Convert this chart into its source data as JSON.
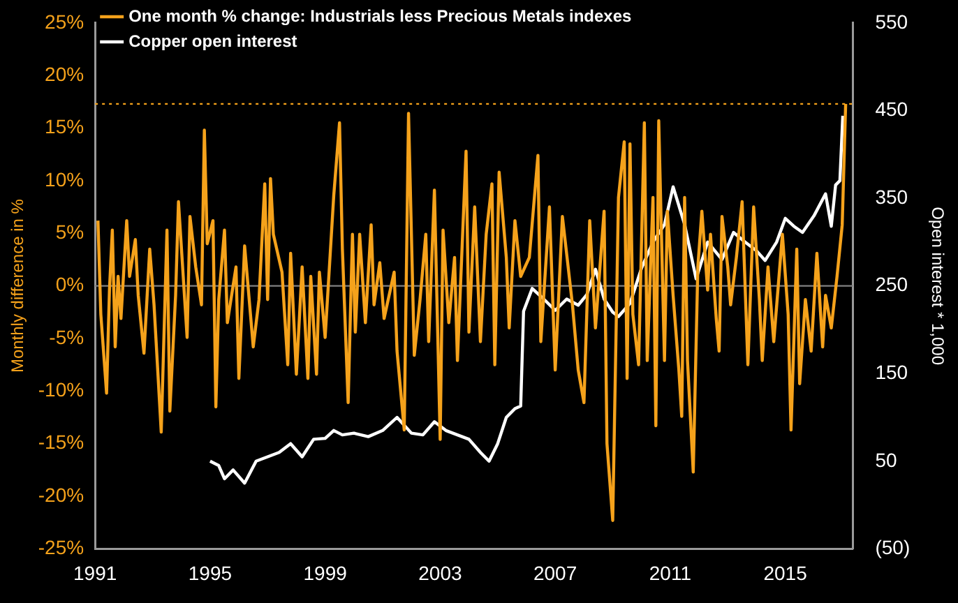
{
  "chart_data": {
    "type": "line",
    "ylabel": "Monthly difference in %",
    "y2label": "Open interest * 1,000",
    "legend": "top left",
    "marker": "none",
    "line_style": "solid",
    "xlim": [
      1991,
      2017.35
    ],
    "xticks": [
      1991,
      1995,
      1999,
      2003,
      2007,
      2011,
      2015
    ],
    "ylim": [
      -25,
      25
    ],
    "yticks": [
      {
        "value": -25,
        "label": "-25%"
      },
      {
        "value": -20,
        "label": "-20%"
      },
      {
        "value": -15,
        "label": "-15%"
      },
      {
        "value": -10,
        "label": "-10%"
      },
      {
        "value": -5,
        "label": "-5%"
      },
      {
        "value": 0,
        "label": "0%"
      },
      {
        "value": 5,
        "label": "5%"
      },
      {
        "value": 10,
        "label": "10%"
      },
      {
        "value": 15,
        "label": "15%"
      },
      {
        "value": 20,
        "label": "20%"
      },
      {
        "value": 25,
        "label": "25%"
      }
    ],
    "y2lim": [
      -50,
      550
    ],
    "y2ticks": [
      {
        "value": -50,
        "label": "(50)"
      },
      50,
      150,
      250,
      350,
      450,
      550
    ],
    "ref_lines": [
      {
        "axis": "y",
        "value": 0,
        "color": "#808080",
        "line_style": "solid"
      },
      {
        "axis": "y",
        "value": 17.3,
        "color": "#f5a21b",
        "line_style": "dotted"
      }
    ],
    "series": [
      {
        "name": "One month % change: Industrials less Precious Metals indexes",
        "color": "#f5a21b",
        "x": [
          1991.1,
          1991.2,
          1991.4,
          1991.5,
          1991.6,
          1991.7,
          1991.8,
          1991.9,
          1992.1,
          1992.2,
          1992.4,
          1992.5,
          1992.7,
          1992.9,
          1993.05,
          1993.3,
          1993.5,
          1993.6,
          1993.8,
          1993.9,
          1994.2,
          1994.3,
          1994.5,
          1994.7,
          1994.8,
          1994.9,
          1995.1,
          1995.2,
          1995.3,
          1995.5,
          1995.6,
          1995.9,
          1996.0,
          1996.2,
          1996.5,
          1996.7,
          1996.9,
          1997.0,
          1997.1,
          1997.2,
          1997.5,
          1997.7,
          1997.8,
          1998.0,
          1998.2,
          1998.4,
          1998.5,
          1998.7,
          1998.8,
          1999.0,
          1999.3,
          1999.5,
          1999.6,
          1999.8,
          1999.95,
          2000.05,
          2000.2,
          2000.4,
          2000.6,
          2000.7,
          2000.9,
          2001.05,
          2001.4,
          2001.5,
          2001.75,
          2001.9,
          2002.1,
          2002.3,
          2002.5,
          2002.6,
          2002.8,
          2003.0,
          2003.1,
          2003.3,
          2003.5,
          2003.6,
          2003.9,
          2004.0,
          2004.2,
          2004.4,
          2004.6,
          2004.8,
          2004.9,
          2005.05,
          2005.3,
          2005.4,
          2005.6,
          2005.8,
          2006.1,
          2006.4,
          2006.5,
          2006.8,
          2007.0,
          2007.25,
          2007.6,
          2007.8,
          2008.0,
          2008.2,
          2008.4,
          2008.7,
          2008.8,
          2009.0,
          2009.2,
          2009.4,
          2009.5,
          2009.6,
          2009.7,
          2009.9,
          2010.1,
          2010.2,
          2010.4,
          2010.5,
          2010.6,
          2010.8,
          2010.9,
          2011.1,
          2011.3,
          2011.4,
          2011.5,
          2011.6,
          2011.8,
          2011.96,
          2012.1,
          2012.3,
          2012.4,
          2012.6,
          2012.7,
          2012.8,
          2013.0,
          2013.1,
          2013.3,
          2013.5,
          2013.7,
          2013.9,
          2014.1,
          2014.2,
          2014.4,
          2014.6,
          2014.9,
          2015.1,
          2015.2,
          2015.4,
          2015.5,
          2015.7,
          2015.9,
          2016.1,
          2016.3,
          2016.4,
          2016.6,
          2016.8,
          2016.98,
          2017.1
        ],
        "values": [
          6.2,
          -2.7,
          -10.2,
          -0.4,
          5.3,
          -5.8,
          0.9,
          -3.1,
          6.2,
          0.9,
          4.4,
          -0.9,
          -6.4,
          3.5,
          -1.8,
          -13.9,
          5.3,
          -11.9,
          -0.9,
          8.0,
          -4.9,
          6.6,
          1.8,
          -1.8,
          14.8,
          4.0,
          6.2,
          -11.5,
          -1.3,
          5.3,
          -3.5,
          1.8,
          -8.8,
          3.8,
          -5.8,
          -1.3,
          9.7,
          -1.3,
          10.2,
          4.9,
          1.3,
          -7.5,
          3.1,
          -8.4,
          1.8,
          -8.8,
          0.9,
          -8.4,
          1.3,
          -4.9,
          8.6,
          15.5,
          3.5,
          -11.1,
          4.9,
          -4.4,
          4.9,
          -3.5,
          5.8,
          -1.8,
          2.2,
          -3.1,
          1.3,
          -6.2,
          -13.7,
          16.4,
          -6.6,
          -1.3,
          4.9,
          -5.3,
          9.1,
          -14.6,
          5.3,
          -3.5,
          2.7,
          -7.1,
          12.8,
          -4.4,
          7.5,
          -5.3,
          4.9,
          9.7,
          -7.5,
          10.8,
          2.7,
          -4.0,
          6.2,
          0.9,
          2.7,
          12.4,
          -5.3,
          7.5,
          -8.0,
          6.6,
          -1.8,
          -8.0,
          -11.1,
          6.2,
          -4.0,
          7.1,
          -15.0,
          -22.3,
          8.4,
          13.7,
          -8.8,
          13.5,
          -2.7,
          -7.5,
          15.5,
          -7.1,
          8.4,
          -13.3,
          15.7,
          -7.1,
          7.1,
          -0.9,
          -8.0,
          -12.4,
          8.4,
          -7.1,
          -17.7,
          1.8,
          7.1,
          -0.4,
          4.9,
          -3.1,
          -6.2,
          6.6,
          1.8,
          -1.8,
          2.7,
          8.0,
          -7.5,
          7.5,
          -1.3,
          -7.1,
          1.8,
          -5.3,
          4.9,
          -2.7,
          -13.7,
          3.5,
          -9.3,
          -1.3,
          -6.2,
          3.1,
          -5.8,
          -0.9,
          -4.0,
          0.9,
          5.8,
          17.3
        ]
      },
      {
        "name": "Copper open interest",
        "color": "#ffffff",
        "axis": "y2",
        "x": [
          1995.0,
          1995.3,
          1995.5,
          1995.8,
          1996.2,
          1996.6,
          1997.0,
          1997.4,
          1997.8,
          1998.2,
          1998.6,
          1999.0,
          1999.3,
          1999.6,
          2000.0,
          2000.5,
          2001.0,
          2001.5,
          2002.0,
          2002.4,
          2002.8,
          2003.2,
          2003.6,
          2004.0,
          2004.4,
          2004.7,
          2005.0,
          2005.3,
          2005.6,
          2005.8,
          2005.9,
          2006.2,
          2006.6,
          2007.0,
          2007.4,
          2007.8,
          2008.1,
          2008.4,
          2008.7,
          2009.0,
          2009.2,
          2009.6,
          2010.0,
          2010.4,
          2010.8,
          2011.1,
          2011.5,
          2011.9,
          2012.3,
          2012.8,
          2013.2,
          2013.6,
          2014.0,
          2014.3,
          2014.7,
          2015.0,
          2015.3,
          2015.6,
          2016.0,
          2016.4,
          2016.6,
          2016.75,
          2016.9,
          2017.0
        ],
        "values": [
          50,
          45,
          30,
          40,
          25,
          50,
          55,
          60,
          70,
          55,
          75,
          76,
          85,
          80,
          82,
          78,
          85,
          100,
          82,
          80,
          95,
          85,
          80,
          75,
          60,
          50,
          70,
          100,
          110,
          113,
          221,
          247,
          235,
          222,
          235,
          228,
          240,
          269,
          235,
          220,
          215,
          230,
          270,
          300,
          320,
          363,
          320,
          258,
          300,
          280,
          311,
          300,
          290,
          279,
          300,
          327,
          318,
          311,
          330,
          355,
          318,
          365,
          370,
          444
        ]
      }
    ]
  }
}
